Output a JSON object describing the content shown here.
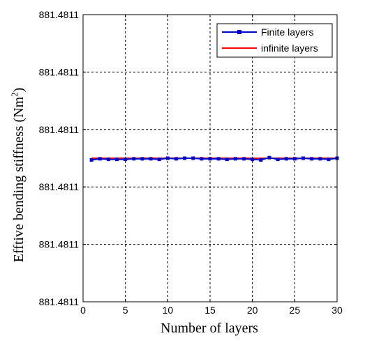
{
  "chart_data": {
    "type": "line",
    "xlabel": "Number of layers",
    "ylabel_main": "Efftive bending stiffness (Nm",
    "ylabel_sup": "2",
    "ylabel_close": ")",
    "xlim": [
      0,
      30
    ],
    "xticks": [
      0,
      5,
      10,
      15,
      20,
      25,
      30
    ],
    "ylim": [
      -2.5,
      2.5
    ],
    "yticks": [
      -2.5,
      -1.5,
      -0.5,
      0.5,
      1.5,
      2.5
    ],
    "ytick_labels": [
      "881.4811",
      "881.4811",
      "881.4811",
      "881.4811",
      "881.4811",
      "881.4811"
    ],
    "grid": true,
    "legend": "top-right",
    "series": [
      {
        "name": "Finite layers",
        "color": "#0000cc",
        "marker": "square",
        "x": [
          1,
          2,
          3,
          4,
          5,
          6,
          7,
          8,
          9,
          10,
          11,
          12,
          13,
          14,
          15,
          16,
          17,
          18,
          19,
          20,
          21,
          22,
          23,
          24,
          25,
          26,
          27,
          28,
          29,
          30
        ],
        "y": [
          -0.03,
          -0.01,
          -0.02,
          -0.02,
          -0.02,
          -0.01,
          -0.01,
          -0.01,
          -0.02,
          0.0,
          -0.01,
          0.0,
          0.0,
          -0.01,
          -0.01,
          -0.01,
          -0.02,
          -0.01,
          -0.01,
          -0.02,
          -0.03,
          0.01,
          -0.02,
          -0.01,
          -0.01,
          0.0,
          -0.01,
          -0.01,
          -0.02,
          0.0
        ]
      },
      {
        "name": "infinite layers",
        "color": "#ff0000",
        "marker": "none",
        "x": [
          1,
          30
        ],
        "y": [
          0.0,
          0.0
        ]
      }
    ]
  }
}
